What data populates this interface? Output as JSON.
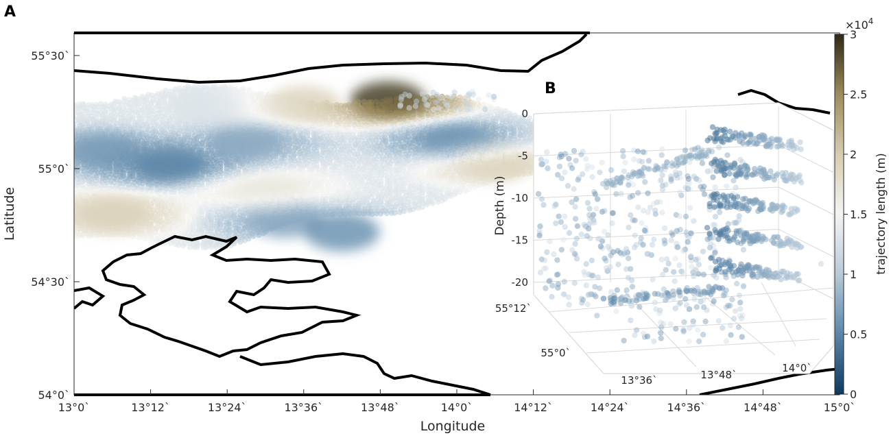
{
  "panels": {
    "a": "A",
    "b": "B"
  },
  "chart_data": [
    {
      "type": "scatter",
      "panel": "A",
      "xlabel": "Longitude",
      "ylabel": "Latitude",
      "xlim": [
        13.0,
        15.0
      ],
      "ylim": [
        54.0,
        55.6
      ],
      "x_ticks": [
        {
          "value": 13.0,
          "label": "13°0`"
        },
        {
          "value": 13.2,
          "label": "13°12`"
        },
        {
          "value": 13.4,
          "label": "13°24`"
        },
        {
          "value": 13.6,
          "label": "13°36`"
        },
        {
          "value": 13.8,
          "label": "13°48`"
        },
        {
          "value": 14.0,
          "label": "14°0`"
        },
        {
          "value": 14.2,
          "label": "14°12`"
        },
        {
          "value": 14.4,
          "label": "14°24`"
        },
        {
          "value": 14.6,
          "label": "14°36`"
        },
        {
          "value": 14.8,
          "label": "14°48`"
        },
        {
          "value": 15.0,
          "label": "15°0`"
        }
      ],
      "y_ticks": [
        {
          "value": 54.0,
          "label": "54°0`"
        },
        {
          "value": 54.5,
          "label": "54°30`"
        },
        {
          "value": 55.0,
          "label": "55°0`"
        },
        {
          "value": 55.5,
          "label": "55°30`"
        }
      ],
      "colorbar": {
        "label": "trajectory length (m)",
        "multiplier": "×10",
        "exponent": "4",
        "range": [
          0,
          3
        ],
        "ticks": [
          "0",
          "0.5",
          "1",
          "1.5",
          "2",
          "2.5",
          "3"
        ],
        "colors": [
          "#0f3a60",
          "#5b86a8",
          "#b7cad9",
          "#f4f4f2",
          "#d6ccb0",
          "#9e8c5c",
          "#2d2a18"
        ]
      },
      "field_clusters": [
        {
          "lon": 13.25,
          "lat": 55.02,
          "value": 0.4
        },
        {
          "lon": 13.08,
          "lat": 55.08,
          "value": 0.6
        },
        {
          "lon": 13.45,
          "lat": 55.12,
          "value": 0.7
        },
        {
          "lon": 14.0,
          "lat": 55.12,
          "value": 0.5
        },
        {
          "lon": 13.55,
          "lat": 54.78,
          "value": 0.7
        },
        {
          "lon": 13.7,
          "lat": 54.72,
          "value": 0.6
        },
        {
          "lon": 13.82,
          "lat": 55.3,
          "value": 2.9
        },
        {
          "lon": 13.6,
          "lat": 55.28,
          "value": 1.9
        },
        {
          "lon": 13.1,
          "lat": 54.8,
          "value": 2.0
        },
        {
          "lon": 14.1,
          "lat": 55.03,
          "value": 2.0
        },
        {
          "lon": 13.5,
          "lat": 54.9,
          "value": 1.7
        },
        {
          "lon": 13.35,
          "lat": 55.27,
          "value": 1.3
        }
      ]
    },
    {
      "type": "scatter",
      "panel": "B",
      "zlabel": "Depth (m)",
      "zlim": [
        -20,
        0
      ],
      "z_ticks": [
        "0",
        "-5",
        "-10",
        "-15",
        "-20"
      ],
      "lat_ticks": [
        "55°12`",
        "55°0`"
      ],
      "lon_ticks": [
        "13°36`",
        "13°48`",
        "14°0`"
      ],
      "depth_layers": [
        -2,
        -6,
        -10,
        -14,
        -18
      ]
    }
  ]
}
